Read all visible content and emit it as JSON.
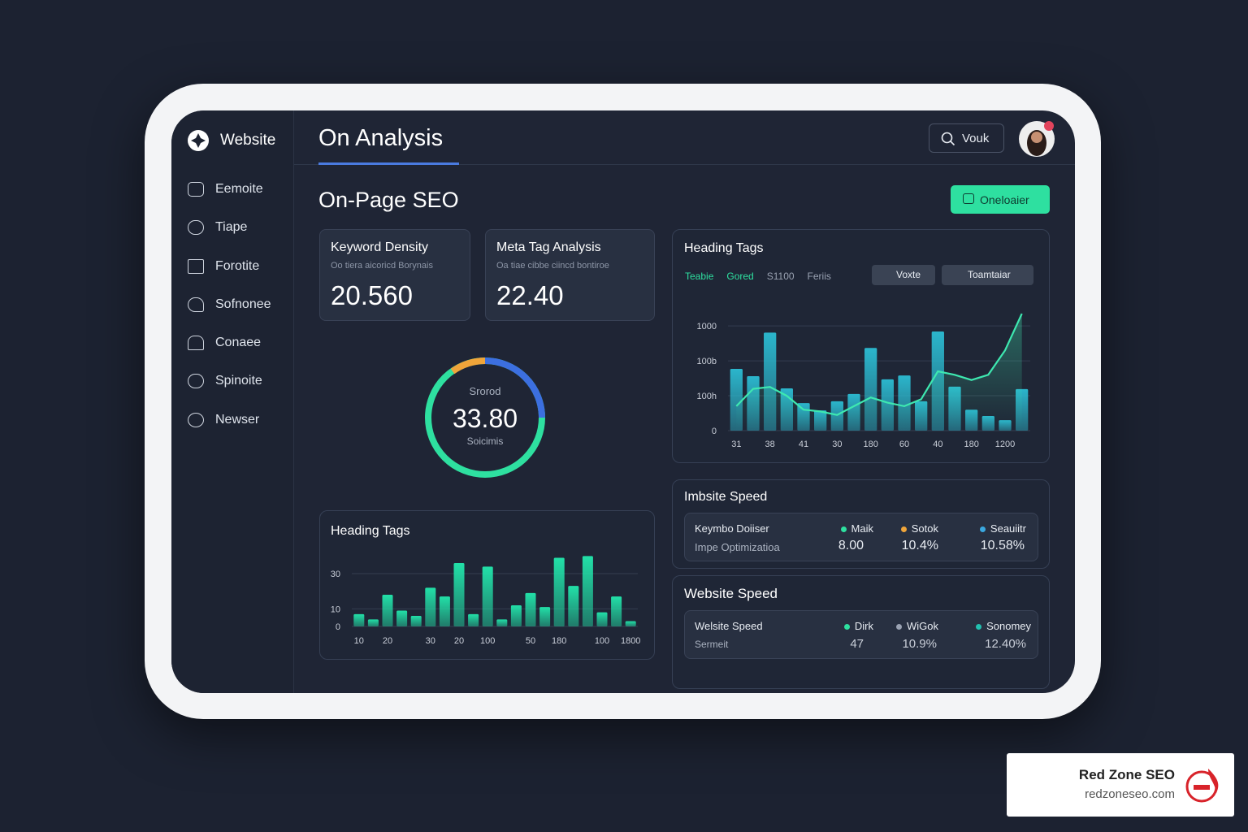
{
  "sidebar": {
    "brand": "Website",
    "items": [
      "Eemoite",
      "Tiape",
      "Forotite",
      "Sofnonee",
      "Conaee",
      "Spinoite",
      "Newser"
    ]
  },
  "header": {
    "title": "On Analysis",
    "search": "Vouk"
  },
  "page_title": "On-Page SEO",
  "action_button": "Oneloaier",
  "cards": [
    {
      "title": "Keyword Density",
      "subtitle": "Oo tiera aicoricd Borynais",
      "value": "20.560"
    },
    {
      "title": "Meta Tag Analysis",
      "subtitle": "Oa tiae cibbe ciincd bontiroe",
      "value": "22.40"
    }
  ],
  "gauge": {
    "top": "Srorod",
    "value": "33.80",
    "bottom": "Soicimis"
  },
  "top_chart": {
    "type": "bar",
    "title": "Heading Tags",
    "tabs": [
      "Teabie",
      "Gored",
      "S1100",
      "Feriis"
    ],
    "buttons": [
      "Voxte",
      "Toamtaiar"
    ],
    "categories": [
      "31",
      null,
      "38",
      null,
      "41",
      null,
      "30",
      null,
      "180",
      null,
      "60",
      null,
      "40",
      null,
      "180",
      null,
      "1200",
      null
    ],
    "series": [
      {
        "color": "#2bb6cc",
        "values": [
          177,
          156,
          281,
          121,
          79,
          58,
          84,
          105,
          237,
          147,
          158,
          84,
          284,
          126,
          60,
          42,
          30,
          119
        ]
      },
      {
        "color": "#3ee8b0",
        "line": true,
        "values": [
          70,
          120,
          125,
          100,
          60,
          55,
          45,
          70,
          95,
          80,
          70,
          90,
          170,
          160,
          145,
          160,
          230,
          335
        ]
      }
    ],
    "ylim": [
      0,
      340
    ],
    "yticks": [
      0,
      {
        "value": 100,
        "label": "100h"
      },
      {
        "value": 200,
        "label": "100b"
      },
      {
        "value": 300,
        "label": "1000"
      }
    ],
    "grid": true
  },
  "bottom_chart": {
    "type": "bar",
    "title": "Heading Tags",
    "categories": [
      "10",
      null,
      "20",
      null,
      null,
      "30",
      null,
      "20",
      null,
      "100",
      null,
      null,
      "50",
      null,
      "180",
      null,
      null,
      "100",
      null,
      "1800"
    ],
    "values": [
      7,
      4,
      18,
      9,
      6,
      22,
      17,
      36,
      7,
      34,
      4,
      12,
      19,
      11,
      39,
      23,
      40,
      8,
      17,
      3
    ],
    "color": "#22e0a8",
    "ylim": [
      0,
      42
    ],
    "yticks": [
      0,
      10,
      30
    ],
    "grid": true
  },
  "speed_panels": [
    {
      "title": "Imbsite Speed",
      "labels": [
        "Keymbo Doiiser",
        "Impe Optimizatioa"
      ],
      "columns": [
        {
          "name": "Maik",
          "value": "8.00"
        },
        {
          "name": "Sotok",
          "value": "10.4%"
        },
        {
          "name": "Seauiitr",
          "value": "10.58%"
        }
      ]
    },
    {
      "title": "Website Speed",
      "labels": [
        "Welsite Speed",
        "Sermeit"
      ],
      "columns": [
        {
          "name": "Dirk",
          "value": "47"
        },
        {
          "name": "WiGok",
          "value": "10.9%"
        },
        {
          "name": "Sonomey",
          "value": "12.40%"
        }
      ]
    }
  ],
  "badge": {
    "name": "Red Zone SEO",
    "url": "redzoneseo.com"
  }
}
